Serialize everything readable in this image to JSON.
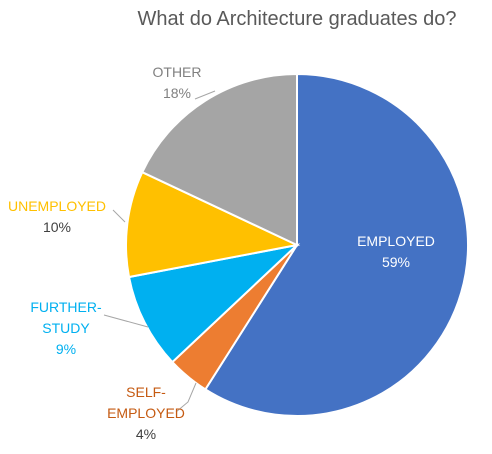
{
  "chart_data": {
    "type": "pie",
    "title": "What do Architecture graduates do?",
    "slices": [
      {
        "name": "EMPLOYED",
        "value": 59,
        "value_label": "59%",
        "color": "#4472C4",
        "label_color": "#FFFFFF",
        "value_color": "#FFFFFF",
        "label_lines": [
          "EMPLOYED"
        ]
      },
      {
        "name": "SELF-EMPLOYED",
        "value": 4,
        "value_label": "4%",
        "color": "#ED7D31",
        "label_color": "#C55A11",
        "value_color": "#404040",
        "label_lines": [
          "SELF-",
          "EMPLOYED"
        ]
      },
      {
        "name": "FURTHER-STUDY",
        "value": 9,
        "value_label": "9%",
        "color": "#00B0F0",
        "label_color": "#00B0F0",
        "value_color": "#00B0F0",
        "label_lines": [
          "FURTHER-",
          "STUDY"
        ]
      },
      {
        "name": "UNEMPLOYED",
        "value": 10,
        "value_label": "10%",
        "color": "#FFC000",
        "label_color": "#FFC000",
        "value_color": "#404040",
        "label_lines": [
          "UNEMPLOYED"
        ]
      },
      {
        "name": "OTHER",
        "value": 18,
        "value_label": "18%",
        "color": "#A5A5A5",
        "label_color": "#808080",
        "value_color": "#808080",
        "label_lines": [
          "OTHER"
        ]
      }
    ],
    "start_angle": "12 o'clock",
    "direction": "clockwise",
    "leader_line_color": "#A6A6A6",
    "legend": "none"
  }
}
